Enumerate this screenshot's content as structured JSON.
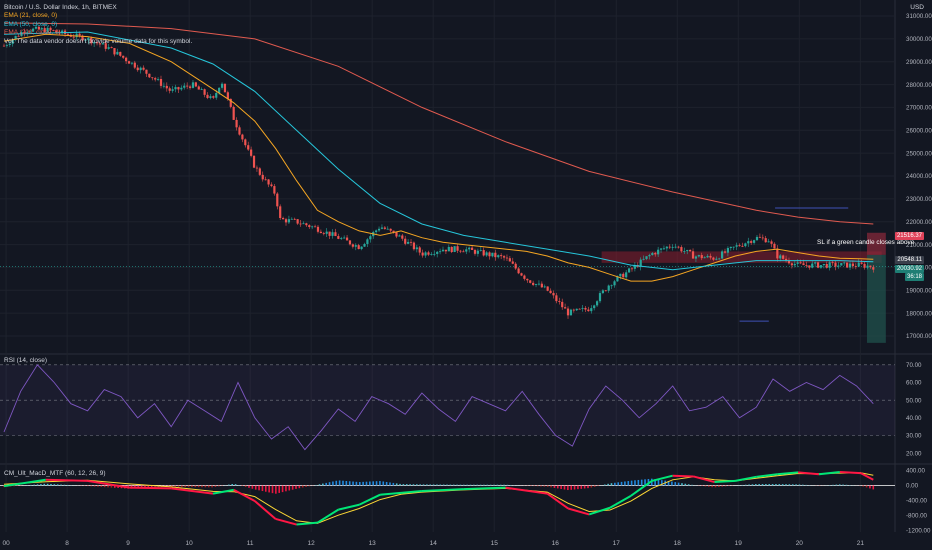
{
  "title": "Bitcoin / U.S. Dollar Index, 1h, BITMEX",
  "currency": "USD",
  "indicators": [
    "EMA (21, close, 0)",
    "EMA (50, close, 0)",
    "EMA (200, close, 0)",
    "Vol: The data vendor doesn't provide volume data for this symbol."
  ],
  "annotation": "SL if a green candle closes above",
  "price_tags": {
    "stop": "21516.37",
    "entry": "20548.11",
    "current": "20030.92",
    "timer": "36:18"
  },
  "rsi_label": "RSI (14, close)",
  "macd_label": "CM_Ult_MacD_MTF (60, 12, 26, 9)",
  "colors": {
    "background": "#131722",
    "up": "#26a69a",
    "down": "#ef5350",
    "ema21": "#f5a623",
    "ema50": "#26c6da",
    "ema200": "#e05a4f",
    "rsi": "#7e57c2",
    "zone": "#8b1e2e"
  },
  "chart_data": [
    {
      "type": "line",
      "title": "Bitcoin / U.S. Dollar Index, 1h, BITMEX",
      "x_ticks": [
        "00",
        "8",
        "9",
        "10",
        "11",
        "12",
        "13",
        "14",
        "15",
        "16",
        "17",
        "18",
        "19",
        "20",
        "21"
      ],
      "y_ticks": [
        31000,
        30000,
        29000,
        28000,
        27000,
        26000,
        25000,
        24000,
        23000,
        22000,
        21000,
        20000,
        19000,
        18000,
        17000
      ],
      "ylim": [
        16300,
        31700
      ],
      "series": [
        {
          "name": "price",
          "x": [
            0,
            0.5,
            1,
            1.5,
            2,
            2.5,
            3,
            3.5,
            4,
            4.5,
            5,
            5.2,
            5.5,
            6,
            6.5,
            6.6,
            7,
            7.5,
            8,
            8.5,
            9,
            9.5,
            10,
            10.5,
            11,
            11.5,
            12,
            12.5,
            13,
            13.5,
            14,
            14.5,
            15,
            15.5,
            16,
            16.5,
            17,
            17.5,
            18,
            18.3,
            18.5,
            19,
            19.5,
            20,
            20.5,
            20.8
          ],
          "values": [
            29700,
            30400,
            30400,
            30200,
            30000,
            29600,
            29000,
            28400,
            27700,
            28000,
            27300,
            28200,
            26500,
            24400,
            23200,
            22100,
            22000,
            21700,
            21300,
            20900,
            21800,
            21300,
            20600,
            20800,
            20800,
            20600,
            20400,
            19500,
            19000,
            18000,
            18200,
            19300,
            19900,
            20600,
            21000,
            20500,
            20400,
            20900,
            21300,
            21200,
            20500,
            20100,
            20100,
            20100,
            20100,
            20031
          ]
        },
        {
          "name": "EMA (21, close, 0)",
          "x": [
            0,
            1,
            2,
            3,
            4,
            5,
            5.5,
            6,
            6.5,
            7,
            7.5,
            8,
            8.5,
            9,
            9.5,
            10,
            10.5,
            11,
            12,
            12.5,
            13,
            13.5,
            14,
            14.5,
            15,
            15.5,
            16,
            16.5,
            17,
            17.5,
            18,
            18.5,
            19,
            19.5,
            20,
            20.5,
            20.8
          ],
          "values": [
            29900,
            30200,
            30100,
            29800,
            29000,
            27800,
            27200,
            26400,
            25200,
            23800,
            22500,
            22000,
            21600,
            21400,
            21600,
            21300,
            21100,
            21000,
            20800,
            20700,
            20500,
            20200,
            20000,
            19700,
            19400,
            19400,
            19600,
            19900,
            20200,
            20500,
            20700,
            20800,
            20650,
            20500,
            20400,
            20380,
            20360
          ]
        },
        {
          "name": "EMA (50, close, 0)",
          "x": [
            0,
            2,
            4,
            5,
            6,
            7,
            8,
            9,
            10,
            11,
            12,
            13,
            14,
            15,
            16,
            17,
            18,
            19,
            20,
            20.8
          ],
          "values": [
            30200,
            30300,
            29600,
            28900,
            27700,
            26000,
            24300,
            22800,
            21900,
            21400,
            21100,
            20800,
            20500,
            20100,
            19900,
            20100,
            20300,
            20300,
            20300,
            20250
          ]
        },
        {
          "name": "EMA (200, close, 0)",
          "x": [
            0,
            2,
            4,
            6,
            8,
            10,
            12,
            14,
            16,
            18,
            19,
            20,
            20.8
          ],
          "values": [
            30700,
            30650,
            30450,
            30000,
            28800,
            27000,
            25500,
            24200,
            23300,
            22500,
            22200,
            22000,
            21900
          ]
        }
      ],
      "levels": [
        {
          "label": "resistance zone",
          "values": [
            20200,
            20700
          ]
        },
        {
          "label": "stop",
          "values": [
            21516.37
          ]
        },
        {
          "label": "entry",
          "values": [
            20548.11
          ]
        },
        {
          "label": "target",
          "values": [
            16700
          ]
        }
      ]
    },
    {
      "type": "line",
      "title": "RSI (14, close)",
      "y_ticks": [
        70,
        60,
        50,
        40,
        30,
        20
      ],
      "ylim": [
        15,
        75
      ],
      "bands": [
        30,
        50,
        70
      ],
      "series": [
        {
          "name": "RSI",
          "x": [
            0,
            0.4,
            0.8,
            1.2,
            1.6,
            2,
            2.4,
            2.8,
            3.2,
            3.6,
            4,
            4.4,
            4.8,
            5.2,
            5.6,
            6,
            6.4,
            6.8,
            7.2,
            7.6,
            8,
            8.4,
            8.8,
            9.2,
            9.6,
            10,
            10.4,
            10.8,
            11.2,
            11.6,
            12,
            12.4,
            12.8,
            13.2,
            13.6,
            14,
            14.4,
            14.8,
            15.2,
            15.6,
            16,
            16.4,
            16.8,
            17.2,
            17.6,
            18,
            18.4,
            18.8,
            19.2,
            19.6,
            20,
            20.4,
            20.8
          ],
          "values": [
            32,
            55,
            70,
            60,
            48,
            44,
            56,
            52,
            40,
            48,
            35,
            50,
            44,
            38,
            60,
            40,
            28,
            35,
            22,
            33,
            45,
            38,
            52,
            48,
            42,
            54,
            45,
            38,
            52,
            48,
            44,
            55,
            42,
            30,
            24,
            45,
            58,
            50,
            40,
            48,
            58,
            44,
            46,
            52,
            40,
            46,
            62,
            55,
            60,
            56,
            64,
            58,
            48
          ]
        }
      ]
    },
    {
      "type": "bar",
      "title": "CM_Ult_MacD_MTF (60, 12, 26, 9)",
      "y_ticks": [
        400,
        0,
        -400,
        -800,
        -1200
      ],
      "ylim": [
        -1250,
        520
      ],
      "series": [
        {
          "name": "MACD",
          "x": [
            0,
            1,
            2,
            3,
            4,
            5,
            5.5,
            6,
            6.5,
            7,
            7.5,
            8,
            8.5,
            9,
            9.5,
            10,
            11,
            12,
            13,
            13.5,
            14,
            14.5,
            15,
            15.5,
            16,
            16.5,
            17,
            17.5,
            18,
            18.5,
            19,
            19.5,
            20,
            20.5,
            20.8
          ],
          "values": [
            -20,
            150,
            120,
            -60,
            -80,
            -220,
            -120,
            -420,
            -900,
            -1050,
            -1000,
            -650,
            -520,
            -250,
            -200,
            -150,
            -100,
            -60,
            -220,
            -620,
            -780,
            -600,
            -280,
            120,
            260,
            240,
            90,
            120,
            230,
            300,
            350,
            300,
            360,
            330,
            150
          ]
        },
        {
          "name": "Signal",
          "x": [
            0,
            1,
            2,
            3,
            4,
            5,
            5.5,
            6,
            6.5,
            7,
            7.5,
            8,
            8.5,
            9,
            9.5,
            10,
            11,
            12,
            13,
            13.5,
            14,
            14.5,
            15,
            15.5,
            16,
            16.5,
            17,
            17.5,
            18,
            18.5,
            19,
            19.5,
            20,
            20.5,
            20.8
          ],
          "values": [
            30,
            100,
            140,
            40,
            -40,
            -160,
            -170,
            -300,
            -650,
            -950,
            -1020,
            -800,
            -620,
            -380,
            -240,
            -180,
            -120,
            -80,
            -180,
            -480,
            -700,
            -660,
            -420,
            -80,
            150,
            230,
            150,
            120,
            190,
            260,
            320,
            310,
            330,
            340,
            270
          ]
        }
      ]
    }
  ]
}
